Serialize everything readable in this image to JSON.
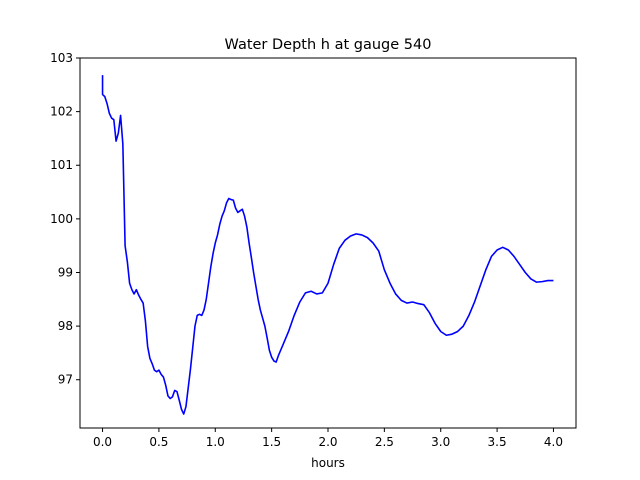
{
  "chart_data": {
    "type": "line",
    "title": "Water Depth h at gauge 540",
    "xlabel": "hours",
    "ylabel": "",
    "xlim": [
      -0.2,
      4.2
    ],
    "ylim": [
      96.1,
      103.0
    ],
    "xticks": [
      0.0,
      0.5,
      1.0,
      1.5,
      2.0,
      2.5,
      3.0,
      3.5,
      4.0
    ],
    "xtick_labels": [
      "0.0",
      "0.5",
      "1.0",
      "1.5",
      "2.0",
      "2.5",
      "3.0",
      "3.5",
      "4.0"
    ],
    "yticks": [
      97,
      98,
      99,
      100,
      101,
      102,
      103
    ],
    "ytick_labels": [
      "97",
      "98",
      "99",
      "100",
      "101",
      "102",
      "103"
    ],
    "grid": false,
    "legend": "none",
    "series": [
      {
        "color": "#0000ff",
        "x": [
          0.0,
          0.0,
          0.0,
          0.02,
          0.04,
          0.06,
          0.08,
          0.1,
          0.12,
          0.14,
          0.16,
          0.18,
          0.2,
          0.22,
          0.24,
          0.26,
          0.28,
          0.3,
          0.32,
          0.34,
          0.36,
          0.38,
          0.4,
          0.42,
          0.44,
          0.46,
          0.48,
          0.5,
          0.52,
          0.54,
          0.56,
          0.58,
          0.6,
          0.62,
          0.64,
          0.66,
          0.68,
          0.7,
          0.72,
          0.74,
          0.76,
          0.78,
          0.8,
          0.82,
          0.84,
          0.86,
          0.88,
          0.9,
          0.92,
          0.94,
          0.96,
          0.98,
          1.0,
          1.02,
          1.04,
          1.06,
          1.08,
          1.1,
          1.12,
          1.14,
          1.16,
          1.18,
          1.2,
          1.22,
          1.24,
          1.26,
          1.28,
          1.3,
          1.32,
          1.34,
          1.36,
          1.38,
          1.4,
          1.42,
          1.44,
          1.46,
          1.48,
          1.5,
          1.52,
          1.54,
          1.56,
          1.58,
          1.6,
          1.65,
          1.7,
          1.75,
          1.8,
          1.85,
          1.9,
          1.95,
          2.0,
          2.05,
          2.1,
          2.15,
          2.2,
          2.25,
          2.3,
          2.35,
          2.4,
          2.45,
          2.5,
          2.55,
          2.6,
          2.65,
          2.7,
          2.75,
          2.8,
          2.85,
          2.9,
          2.95,
          3.0,
          3.05,
          3.1,
          3.15,
          3.2,
          3.25,
          3.3,
          3.35,
          3.4,
          3.45,
          3.5,
          3.55,
          3.6,
          3.65,
          3.7,
          3.75,
          3.8,
          3.85,
          3.9,
          3.95,
          4.0
        ],
        "values": [
          102.68,
          102.5,
          102.32,
          102.28,
          102.15,
          101.97,
          101.88,
          101.85,
          101.45,
          101.6,
          101.93,
          101.4,
          99.5,
          99.2,
          98.8,
          98.68,
          98.6,
          98.68,
          98.58,
          98.5,
          98.43,
          98.1,
          97.62,
          97.4,
          97.3,
          97.18,
          97.15,
          97.18,
          97.1,
          97.05,
          96.9,
          96.7,
          96.65,
          96.68,
          96.8,
          96.78,
          96.62,
          96.45,
          96.36,
          96.5,
          96.85,
          97.2,
          97.6,
          98.0,
          98.2,
          98.22,
          98.2,
          98.3,
          98.5,
          98.8,
          99.1,
          99.35,
          99.55,
          99.7,
          99.9,
          100.05,
          100.15,
          100.3,
          100.38,
          100.36,
          100.35,
          100.2,
          100.12,
          100.15,
          100.18,
          100.05,
          99.85,
          99.55,
          99.28,
          99.0,
          98.75,
          98.5,
          98.3,
          98.15,
          98.0,
          97.78,
          97.55,
          97.42,
          97.35,
          97.33,
          97.45,
          97.55,
          97.65,
          97.9,
          98.2,
          98.45,
          98.62,
          98.65,
          98.6,
          98.62,
          98.8,
          99.15,
          99.45,
          99.6,
          99.68,
          99.72,
          99.7,
          99.65,
          99.55,
          99.4,
          99.05,
          98.8,
          98.6,
          98.48,
          98.43,
          98.45,
          98.42,
          98.4,
          98.25,
          98.05,
          97.9,
          97.83,
          97.85,
          97.9,
          98.0,
          98.2,
          98.45,
          98.75,
          99.05,
          99.3,
          99.42,
          99.47,
          99.42,
          99.3,
          99.15,
          99.0,
          98.88,
          98.82,
          98.83,
          98.85,
          98.85
        ]
      }
    ]
  }
}
